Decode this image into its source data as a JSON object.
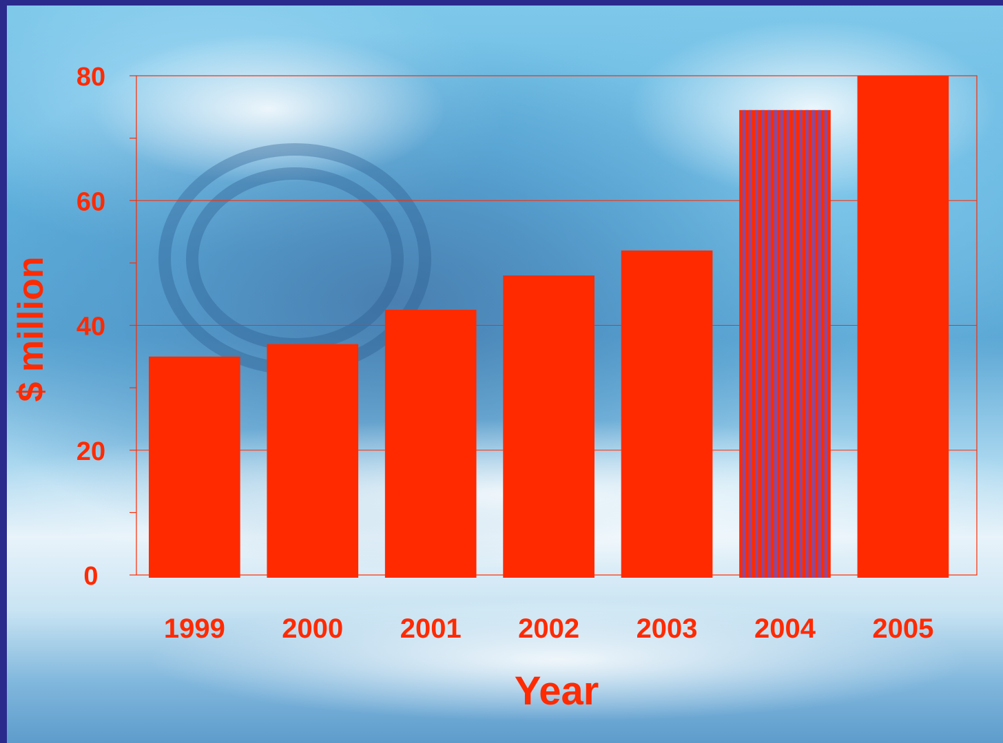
{
  "chart_data": {
    "type": "bar",
    "title": "",
    "xlabel": "Year",
    "ylabel": "$ million",
    "categories": [
      "1999",
      "2000",
      "2001",
      "2002",
      "2003",
      "2004",
      "2005"
    ],
    "values": [
      35,
      37,
      42.5,
      48,
      52,
      74.5,
      80
    ],
    "ylim": [
      0,
      80
    ],
    "yticks": [
      "0",
      "20",
      "40",
      "60",
      "80"
    ],
    "grid": true,
    "bar_color": "#ff2a00",
    "striped_bars": [
      "2004"
    ],
    "stripe_color": "#8c4a9a",
    "axis_color": "#ff2a00",
    "text_color": "#ff2a00"
  }
}
